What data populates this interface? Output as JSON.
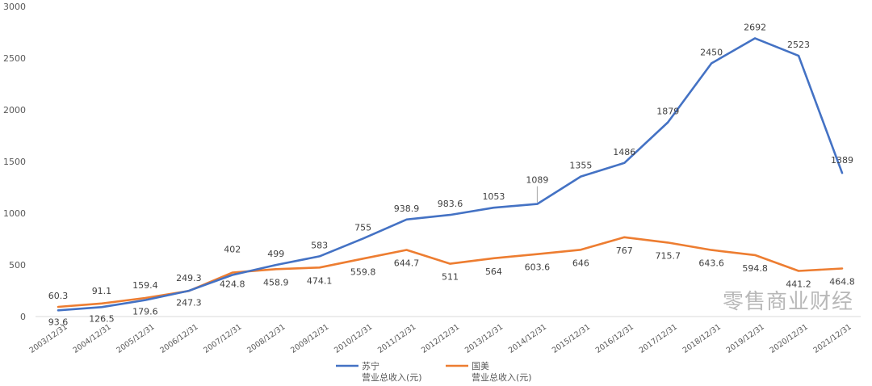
{
  "chart_data": {
    "type": "line",
    "categories": [
      "2003/12/31",
      "2004/12/31",
      "2005/12/31",
      "2006/12/31",
      "2007/12/31",
      "2008/12/31",
      "2009/12/31",
      "2010/12/31",
      "2011/12/31",
      "2012/12/31",
      "2013/12/31",
      "2014/12/31",
      "2015/12/31",
      "2016/12/31",
      "2017/12/31",
      "2018/12/31",
      "2019/12/31",
      "2020/12/31",
      "2021/12/31"
    ],
    "series": [
      {
        "name": "苏宁",
        "name_line2": "营业总收入(元)",
        "color": "#4472c4",
        "values": [
          60.3,
          91.1,
          159.4,
          249.3,
          402,
          499,
          583,
          755,
          938.9,
          983.6,
          1053,
          1089,
          1355,
          1486,
          1879,
          2450,
          2692,
          2523,
          1389
        ],
        "labels": [
          "60.3",
          "91.1",
          "159.4",
          "249.3",
          "402",
          "499",
          "583",
          "755",
          "938.9",
          "983.6",
          "1053",
          "1089",
          "1355",
          "1486",
          "1879",
          "2450",
          "2692",
          "2523",
          "1389"
        ]
      },
      {
        "name": "国美",
        "name_line2": "营业总收入(元)",
        "color": "#ed7d31",
        "values": [
          93.6,
          126.5,
          179.6,
          247.3,
          424.8,
          458.9,
          474.1,
          559.8,
          644.7,
          511,
          564,
          603.6,
          646,
          767,
          715.7,
          643.6,
          594.8,
          441.2,
          464.8
        ],
        "labels": [
          "93.6",
          "126.5",
          "179.6",
          "247.3",
          "424.8",
          "458.9",
          "474.1",
          "559.8",
          "644.7",
          "511",
          "564",
          "603.6",
          "646",
          "767",
          "715.7",
          "643.6",
          "594.8",
          "441.2",
          "464.8"
        ]
      }
    ],
    "yticks": [
      "0",
      "500",
      "1000",
      "1500",
      "2000",
      "2500",
      "3000"
    ],
    "ylim": [
      0,
      3000
    ],
    "grid": false,
    "legend": "bottom"
  },
  "watermark": "零售商业财经"
}
